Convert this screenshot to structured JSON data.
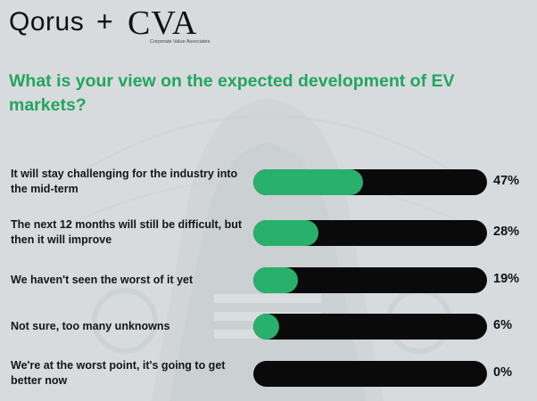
{
  "brand": {
    "left": "Qorus",
    "plus": "+",
    "right": "CVA",
    "right_subtitle": "Corporate Value Associates"
  },
  "title": "What is your view on the expected development of EV markets?",
  "colors": {
    "accent": "#28b06c",
    "title": "#21a660",
    "track": "#0a0a0a",
    "background": "#d9dcdf"
  },
  "chart_data": {
    "type": "bar",
    "orientation": "horizontal",
    "categories": [
      "It will stay challenging for the industry into the mid-term",
      "The next 12 months will still be difficult, but then it will improve",
      "We haven't seen the worst of it yet",
      "Not sure, too many unknowns",
      "We're at the worst point, it's going to get better now"
    ],
    "values": [
      47,
      28,
      19,
      6,
      0
    ],
    "value_labels": [
      "47%",
      "28%",
      "19%",
      "6%",
      "0%"
    ],
    "xlim": [
      0,
      100
    ],
    "title": "What is your view on the expected development of EV markets?",
    "xlabel": "",
    "ylabel": "",
    "grid": false,
    "legend": "none"
  }
}
